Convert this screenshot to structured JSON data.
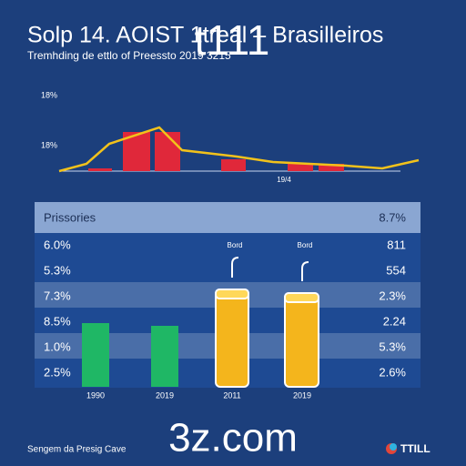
{
  "header": {
    "title": "Solp 14. AOIST 1treal – Brasilleiros",
    "subtitle": "Tremhding de ettlo of Preessto 2019 3215",
    "overlay": "t111"
  },
  "top_chart": {
    "labels": [
      "18%",
      "18%"
    ],
    "x_label": "19/4"
  },
  "table": {
    "header": [
      "Prissories",
      "8.7%"
    ],
    "rows": [
      [
        "6.0%",
        "811"
      ],
      [
        "5.3%",
        "554"
      ],
      [
        "7.3%",
        "2.3%"
      ],
      [
        "8.5%",
        "2.24"
      ],
      [
        "1.0%",
        "5.3%"
      ],
      [
        "2.5%",
        "2.6%"
      ]
    ],
    "bar_labels": [
      "Bord",
      "Bord"
    ],
    "x_labels": [
      "1990",
      "2019",
      "2011",
      "2019"
    ]
  },
  "footer": {
    "source": "Sengem da Presig Cave",
    "watermark": "3z.com",
    "logo": "TTILL"
  }
}
